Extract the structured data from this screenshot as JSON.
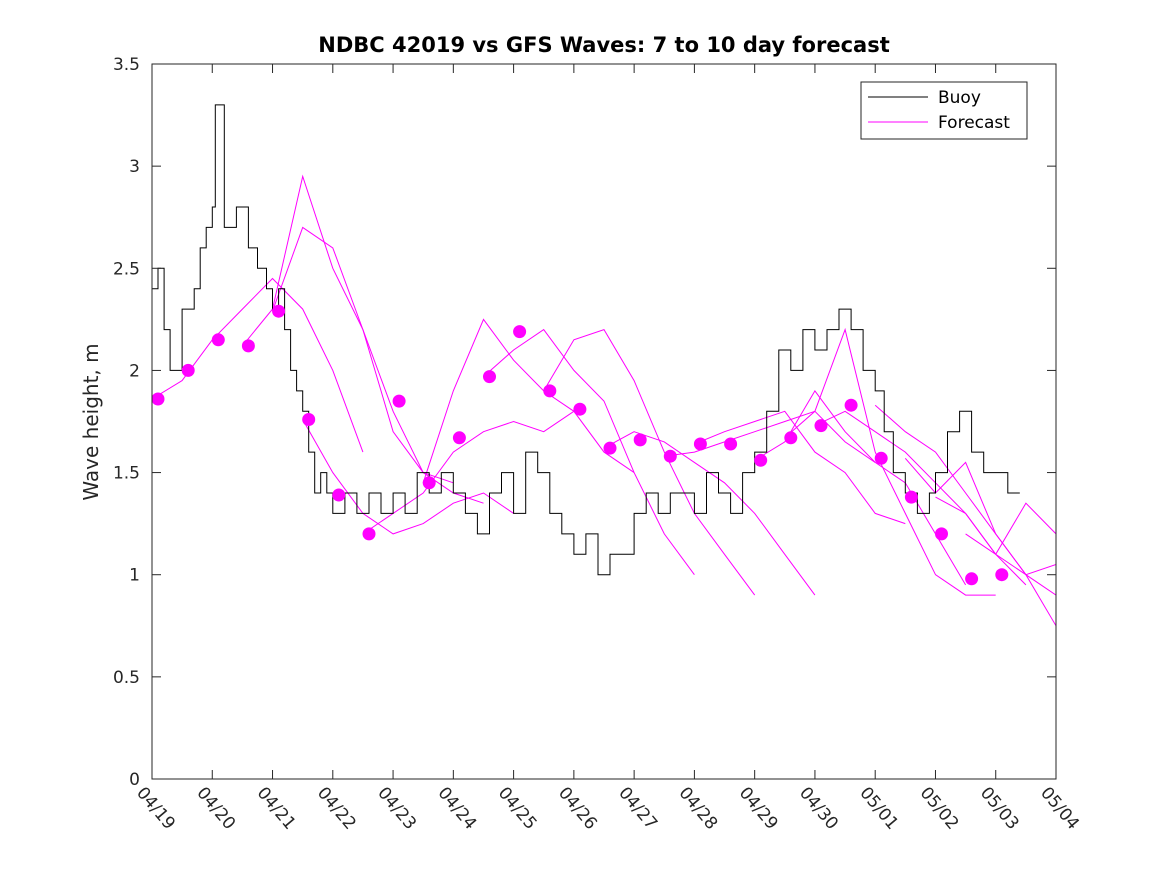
{
  "chart_data": {
    "type": "line",
    "title": "NDBC 42019 vs GFS Waves: 7 to 10 day forecast",
    "xlabel": "",
    "ylabel": "Wave height, m",
    "ylim": [
      0,
      3.5
    ],
    "yticks": [
      "0",
      "0.5",
      "1",
      "1.5",
      "2",
      "2.5",
      "3",
      "3.5"
    ],
    "xticks": [
      "04/19",
      "04/20",
      "04/21",
      "04/22",
      "04/23",
      "04/24",
      "04/25",
      "04/26",
      "04/27",
      "04/28",
      "04/29",
      "04/30",
      "05/01",
      "05/02",
      "05/03",
      "05/04"
    ],
    "legend_placement": "top-right",
    "grid": false,
    "legend": [
      "Buoy",
      "Forecast"
    ],
    "colors": {
      "buoy": "#000000",
      "forecast": "#ff00ff"
    },
    "buoy": {
      "name": "Buoy",
      "x_days": [
        0,
        0.1,
        0.2,
        0.3,
        0.5,
        0.7,
        0.8,
        0.9,
        1.0,
        1.05,
        1.2,
        1.4,
        1.6,
        1.75,
        1.9,
        2.0,
        2.1,
        2.2,
        2.3,
        2.4,
        2.5,
        2.6,
        2.7,
        2.8,
        2.9,
        3.0,
        3.2,
        3.4,
        3.6,
        3.8,
        4.0,
        4.2,
        4.4,
        4.6,
        4.8,
        5.0,
        5.2,
        5.4,
        5.6,
        5.8,
        6.0,
        6.2,
        6.4,
        6.6,
        6.8,
        7.0,
        7.2,
        7.4,
        7.6,
        7.8,
        8.0,
        8.2,
        8.4,
        8.6,
        8.8,
        9.0,
        9.2,
        9.4,
        9.6,
        9.8,
        10.0,
        10.2,
        10.4,
        10.6,
        10.8,
        11.0,
        11.2,
        11.4,
        11.6,
        11.8,
        12.0,
        12.15,
        12.3,
        12.5,
        12.7,
        12.9,
        13.0,
        13.2,
        13.4,
        13.6,
        13.8,
        14.0,
        14.2,
        14.4
      ],
      "values": [
        2.4,
        2.5,
        2.2,
        2.0,
        2.3,
        2.4,
        2.6,
        2.7,
        2.8,
        3.3,
        2.7,
        2.8,
        2.6,
        2.5,
        2.4,
        2.3,
        2.4,
        2.2,
        2.0,
        1.9,
        1.8,
        1.6,
        1.4,
        1.5,
        1.4,
        1.3,
        1.4,
        1.3,
        1.4,
        1.3,
        1.4,
        1.3,
        1.5,
        1.4,
        1.5,
        1.4,
        1.3,
        1.2,
        1.4,
        1.5,
        1.3,
        1.6,
        1.5,
        1.3,
        1.2,
        1.1,
        1.2,
        1.0,
        1.1,
        1.1,
        1.3,
        1.4,
        1.3,
        1.4,
        1.4,
        1.3,
        1.5,
        1.4,
        1.3,
        1.5,
        1.6,
        1.8,
        2.1,
        2.0,
        2.2,
        2.1,
        2.2,
        2.3,
        2.2,
        2.0,
        1.9,
        1.7,
        1.5,
        1.4,
        1.3,
        1.4,
        1.5,
        1.7,
        1.8,
        1.6,
        1.5,
        1.5,
        1.4,
        1.4
      ]
    },
    "forecast_markers": {
      "x_days": [
        0.1,
        0.6,
        1.1,
        1.6,
        2.1,
        2.6,
        3.1,
        3.6,
        4.1,
        4.6,
        5.1,
        5.6,
        6.1,
        6.6,
        7.1,
        7.6,
        8.1,
        8.6,
        9.1,
        9.6,
        10.1,
        10.6,
        11.1,
        11.6,
        12.1,
        12.6,
        13.1,
        13.6,
        14.1,
        14.6
      ],
      "values": [
        1.86,
        2.0,
        2.15,
        2.12,
        2.29,
        1.76,
        1.39,
        1.2,
        1.85,
        1.45,
        1.67,
        1.97,
        2.19,
        1.9,
        1.81,
        1.62,
        1.66,
        1.58,
        1.64,
        1.64,
        1.56,
        1.67,
        1.73,
        1.83,
        1.57,
        1.38,
        1.2,
        0.98,
        1.0,
        null
      ]
    },
    "forecast_runs": [
      {
        "x_days": [
          0.0,
          0.5,
          1.0,
          1.5,
          2.0,
          2.5,
          3.0,
          3.5
        ],
        "values": [
          1.86,
          1.95,
          2.15,
          2.3,
          2.45,
          2.3,
          2.0,
          1.6
        ]
      },
      {
        "x_days": [
          1.5,
          2.0,
          2.5,
          3.0,
          3.5,
          4.0,
          4.5,
          5.0
        ],
        "values": [
          2.12,
          2.3,
          2.95,
          2.5,
          2.2,
          1.8,
          1.5,
          1.45
        ]
      },
      {
        "x_days": [
          2.0,
          2.5,
          3.0,
          3.5,
          4.0,
          4.5,
          5.0,
          5.5
        ],
        "values": [
          2.29,
          2.7,
          2.6,
          2.2,
          1.7,
          1.5,
          1.4,
          1.35
        ]
      },
      {
        "x_days": [
          2.5,
          3.0,
          3.5,
          4.0,
          4.5,
          5.0,
          5.5,
          6.0
        ],
        "values": [
          1.76,
          1.5,
          1.3,
          1.2,
          1.25,
          1.35,
          1.4,
          1.3
        ]
      },
      {
        "x_days": [
          3.5,
          4.0,
          4.5,
          5.0,
          5.5,
          6.0,
          6.5,
          7.0
        ],
        "values": [
          1.2,
          1.3,
          1.4,
          1.6,
          1.7,
          1.75,
          1.7,
          1.8
        ]
      },
      {
        "x_days": [
          4.5,
          5.0,
          5.5,
          6.0,
          6.5,
          7.0,
          7.5,
          8.0
        ],
        "values": [
          1.45,
          1.9,
          2.25,
          2.05,
          1.9,
          1.8,
          1.6,
          1.5
        ]
      },
      {
        "x_days": [
          5.5,
          6.0,
          6.5,
          7.0,
          7.5,
          8.0,
          8.5,
          9.0
        ],
        "values": [
          1.97,
          2.1,
          2.2,
          2.0,
          1.85,
          1.5,
          1.2,
          1.0
        ]
      },
      {
        "x_days": [
          6.5,
          7.0,
          7.5,
          8.0,
          8.5,
          9.0,
          9.5,
          10.0
        ],
        "values": [
          1.9,
          2.15,
          2.2,
          1.95,
          1.6,
          1.3,
          1.1,
          0.9
        ]
      },
      {
        "x_days": [
          7.5,
          8.0,
          8.5,
          9.0,
          9.5,
          10.0,
          10.5,
          11.0
        ],
        "values": [
          1.62,
          1.7,
          1.65,
          1.55,
          1.45,
          1.3,
          1.1,
          0.9
        ]
      },
      {
        "x_days": [
          8.5,
          9.0,
          9.5,
          10.0,
          10.5,
          11.0,
          11.5,
          12.0
        ],
        "values": [
          1.58,
          1.6,
          1.65,
          1.7,
          1.75,
          1.8,
          1.65,
          1.55
        ]
      },
      {
        "x_days": [
          9.0,
          9.5,
          10.0,
          10.5,
          11.0,
          11.5,
          12.0,
          12.5
        ],
        "values": [
          1.64,
          1.7,
          1.75,
          1.8,
          1.6,
          1.5,
          1.3,
          1.25
        ]
      },
      {
        "x_days": [
          10.0,
          10.5,
          11.0,
          11.5,
          12.0,
          12.5,
          13.0,
          13.5
        ],
        "values": [
          1.56,
          1.65,
          1.9,
          1.7,
          1.55,
          1.45,
          1.2,
          0.95
        ]
      },
      {
        "x_days": [
          10.5,
          11.0,
          11.5,
          12.0,
          12.5,
          13.0,
          13.5,
          14.0
        ],
        "values": [
          1.67,
          1.8,
          2.2,
          1.6,
          1.3,
          1.0,
          0.9,
          0.9
        ]
      },
      {
        "x_days": [
          11.0,
          11.5,
          12.0,
          12.5,
          13.0,
          13.5,
          14.0,
          14.5
        ],
        "values": [
          1.73,
          1.8,
          1.7,
          1.6,
          1.45,
          1.3,
          1.1,
          0.95
        ]
      },
      {
        "x_days": [
          12.0,
          12.5,
          13.0,
          13.5,
          14.0,
          14.5,
          15.0
        ],
        "values": [
          1.83,
          1.7,
          1.6,
          1.4,
          1.2,
          1.0,
          0.9
        ]
      },
      {
        "x_days": [
          12.5,
          13.0,
          13.5,
          14.0,
          14.5,
          15.0
        ],
        "values": [
          1.57,
          1.4,
          1.55,
          1.2,
          1.0,
          0.75
        ]
      },
      {
        "x_days": [
          13.0,
          13.5,
          14.0,
          14.5,
          15.0
        ],
        "values": [
          1.38,
          1.3,
          1.1,
          1.0,
          1.05
        ]
      },
      {
        "x_days": [
          13.5,
          14.0,
          14.5,
          15.0
        ],
        "values": [
          1.2,
          1.1,
          1.35,
          1.2
        ]
      }
    ]
  }
}
